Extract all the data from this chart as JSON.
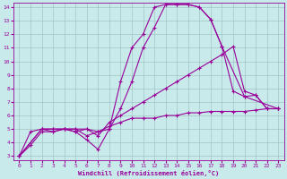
{
  "xlabel": "Windchill (Refroidissement éolien,°C)",
  "xlim": [
    -0.5,
    23.5
  ],
  "ylim": [
    2.7,
    14.3
  ],
  "xticks": [
    0,
    1,
    2,
    3,
    4,
    5,
    6,
    7,
    8,
    9,
    10,
    11,
    12,
    13,
    14,
    15,
    16,
    17,
    18,
    19,
    20,
    21,
    22,
    23
  ],
  "yticks": [
    3,
    4,
    5,
    6,
    7,
    8,
    9,
    10,
    11,
    12,
    13,
    14
  ],
  "bg_color": "#c8eaea",
  "line_color": "#990099",
  "grid_color": "#a0c4c4",
  "lines": [
    {
      "x": [
        0,
        1,
        2,
        3,
        4,
        5,
        6,
        7,
        8,
        9,
        10,
        11,
        12,
        13,
        14,
        15,
        16,
        17,
        18,
        19,
        20,
        21,
        22,
        23
      ],
      "y": [
        3.0,
        4.8,
        5.0,
        5.0,
        5.0,
        5.0,
        4.5,
        4.8,
        5.0,
        8.5,
        11.0,
        12.0,
        14.0,
        14.2,
        14.2,
        14.2,
        14.0,
        13.1,
        11.1,
        7.8,
        7.4,
        7.5,
        6.5,
        6.5
      ]
    },
    {
      "x": [
        0,
        2,
        3,
        4,
        5,
        6,
        7,
        8,
        9,
        10,
        11,
        12,
        13,
        14,
        15,
        16,
        17,
        18,
        20,
        23
      ],
      "y": [
        3.0,
        5.0,
        5.0,
        5.0,
        4.8,
        4.2,
        3.5,
        5.0,
        6.5,
        8.5,
        11.0,
        12.5,
        14.2,
        14.2,
        14.2,
        14.0,
        13.1,
        11.1,
        7.4,
        6.5
      ]
    },
    {
      "x": [
        0,
        2,
        3,
        4,
        5,
        6,
        7,
        8,
        9,
        10,
        11,
        12,
        13,
        14,
        15,
        16,
        17,
        18,
        19,
        20,
        21,
        22,
        23
      ],
      "y": [
        3.0,
        5.0,
        4.8,
        5.0,
        5.0,
        5.0,
        4.5,
        5.5,
        6.0,
        6.5,
        7.0,
        7.5,
        8.0,
        8.5,
        9.0,
        9.5,
        10.0,
        10.5,
        11.1,
        7.8,
        7.5,
        6.5,
        6.5
      ]
    },
    {
      "x": [
        0,
        1,
        2,
        3,
        4,
        5,
        6,
        7,
        8,
        9,
        10,
        11,
        12,
        13,
        14,
        15,
        16,
        17,
        18,
        19,
        20,
        21,
        22,
        23
      ],
      "y": [
        3.0,
        3.8,
        4.8,
        4.8,
        5.0,
        4.8,
        5.0,
        4.8,
        5.2,
        5.5,
        5.8,
        5.8,
        5.8,
        6.0,
        6.0,
        6.2,
        6.2,
        6.3,
        6.3,
        6.3,
        6.3,
        6.4,
        6.5,
        6.5
      ]
    }
  ]
}
